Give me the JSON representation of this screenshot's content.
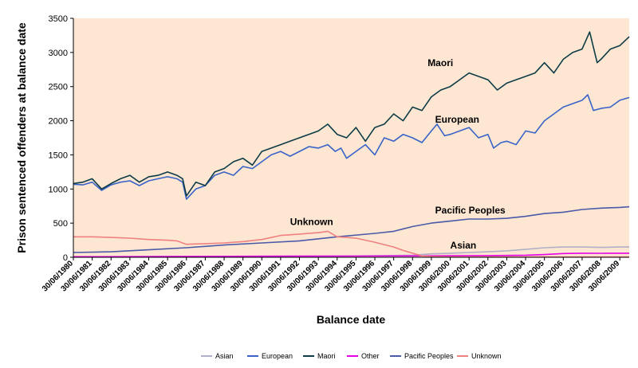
{
  "chart_data": {
    "type": "line",
    "xlabel": "Balance date",
    "ylabel": "Prison sentenced offenders at balance date",
    "ylim": [
      0,
      3500
    ],
    "yticks": [
      "0",
      "500",
      "1000",
      "1500",
      "2000",
      "2500",
      "3000",
      "3500"
    ],
    "x_start_year": 1980,
    "x_end_year": 2009.5,
    "x_tick_labels": [
      "30/06/1980",
      "30/06/1981",
      "30/06/1982",
      "30/06/1983",
      "30/06/1984",
      "30/06/1985",
      "30/06/1986",
      "30/06/1987",
      "30/06/1988",
      "30/06/1989",
      "30/06/1990",
      "30/06/1991",
      "30/06/1992",
      "30/06/1993",
      "30/06/1994",
      "30/06/1995",
      "30/06/1996",
      "30/06/1997",
      "30/06/1998",
      "30/06/1999",
      "30/06/2000",
      "30/06/2001",
      "30/06/2002",
      "30/06/2003",
      "30/06/2004",
      "30/06/2005",
      "30/06/2006",
      "30/06/2007",
      "30/06/2008",
      "30/06/2009"
    ],
    "grid": false,
    "plot_background": "#fde6d2",
    "legend_position": "bottom",
    "series": [
      {
        "name": "Asian",
        "color": "#b0b0c8",
        "x": [
          1980,
          1985,
          1990,
          1995,
          1998,
          1999,
          2000,
          2001,
          2002,
          2003,
          2004,
          2005,
          2006,
          2007,
          2008,
          2009,
          2009.5
        ],
        "values": [
          8,
          10,
          15,
          20,
          30,
          50,
          60,
          70,
          80,
          95,
          115,
          140,
          150,
          150,
          145,
          150,
          150
        ]
      },
      {
        "name": "European",
        "color": "#3a64c8",
        "x": [
          1980,
          1980.5,
          1981,
          1981.5,
          1982,
          1982.5,
          1983,
          1983.5,
          1984,
          1984.5,
          1985,
          1985.5,
          1985.8,
          1986,
          1986.5,
          1987,
          1987.5,
          1988,
          1988.5,
          1989,
          1989.5,
          1990,
          1990.5,
          1991,
          1991.5,
          1992,
          1992.5,
          1993,
          1993.5,
          1993.9,
          1994.2,
          1994.5,
          1995,
          1995.5,
          1996,
          1996.5,
          1997,
          1997.5,
          1998,
          1998.5,
          1999,
          1999.3,
          1999.7,
          2000,
          2000.5,
          2001,
          2001.5,
          2002,
          2002.3,
          2002.7,
          2003,
          2003.5,
          2004,
          2004.5,
          2005,
          2005.5,
          2006,
          2006.5,
          2007,
          2007.3,
          2007.6,
          2008,
          2008.5,
          2009,
          2009.5
        ],
        "values": [
          1070,
          1060,
          1100,
          980,
          1060,
          1100,
          1120,
          1050,
          1120,
          1150,
          1180,
          1150,
          1100,
          850,
          1000,
          1050,
          1200,
          1250,
          1200,
          1330,
          1300,
          1400,
          1500,
          1550,
          1480,
          1550,
          1620,
          1600,
          1650,
          1550,
          1600,
          1450,
          1550,
          1650,
          1500,
          1750,
          1700,
          1800,
          1750,
          1680,
          1850,
          1950,
          1780,
          1800,
          1850,
          1900,
          1750,
          1800,
          1600,
          1680,
          1700,
          1650,
          1850,
          1820,
          2000,
          2100,
          2200,
          2250,
          2300,
          2380,
          2150,
          2180,
          2200,
          2300,
          2340
        ]
      },
      {
        "name": "Maori",
        "color": "#0e3c46",
        "x": [
          1980,
          1980.5,
          1981,
          1981.5,
          1982,
          1982.5,
          1983,
          1983.5,
          1984,
          1984.5,
          1985,
          1985.5,
          1985.8,
          1986,
          1986.5,
          1987,
          1987.5,
          1988,
          1988.5,
          1989,
          1989.5,
          1990,
          1990.5,
          1991,
          1991.5,
          1992,
          1992.5,
          1993,
          1993.5,
          1994,
          1994.5,
          1995,
          1995.5,
          1996,
          1996.5,
          1997,
          1997.5,
          1998,
          1998.5,
          1999,
          1999.5,
          2000,
          2000.5,
          2001,
          2001.5,
          2002,
          2002.5,
          2003,
          2003.5,
          2004,
          2004.5,
          2005,
          2005.5,
          2006,
          2006.5,
          2007,
          2007.4,
          2007.8,
          2008,
          2008.5,
          2009,
          2009.5
        ],
        "values": [
          1080,
          1100,
          1150,
          1000,
          1080,
          1150,
          1200,
          1100,
          1180,
          1200,
          1250,
          1200,
          1150,
          900,
          1100,
          1050,
          1250,
          1300,
          1400,
          1450,
          1350,
          1550,
          1600,
          1650,
          1700,
          1750,
          1800,
          1850,
          1950,
          1800,
          1750,
          1900,
          1700,
          1900,
          1950,
          2100,
          2000,
          2200,
          2150,
          2350,
          2450,
          2500,
          2600,
          2700,
          2650,
          2600,
          2450,
          2550,
          2600,
          2650,
          2700,
          2850,
          2700,
          2900,
          3000,
          3050,
          3300,
          2850,
          2900,
          3050,
          3100,
          3230
        ]
      },
      {
        "name": "Other",
        "color": "#e600e6",
        "x": [
          1980,
          1985,
          1990,
          1995,
          1998,
          2000,
          2002,
          2004,
          2005,
          2006,
          2007,
          2008,
          2009,
          2009.5
        ],
        "values": [
          8,
          10,
          15,
          18,
          20,
          22,
          25,
          30,
          40,
          55,
          60,
          58,
          60,
          60
        ]
      },
      {
        "name": "Pacific Peoples",
        "color": "#4a5aa8",
        "x": [
          1980,
          1982,
          1984,
          1986,
          1988,
          1990,
          1992,
          1994,
          1996,
          1997,
          1998,
          1999,
          2000,
          2001,
          2002,
          2003,
          2004,
          2005,
          2006,
          2007,
          2008,
          2009,
          2009.5
        ],
        "values": [
          70,
          80,
          110,
          140,
          180,
          210,
          240,
          300,
          350,
          380,
          450,
          500,
          530,
          560,
          560,
          570,
          600,
          640,
          660,
          700,
          720,
          730,
          740
        ]
      },
      {
        "name": "Unknown",
        "color": "#f08080",
        "x": [
          1980,
          1981,
          1982,
          1983,
          1984,
          1985,
          1985.5,
          1986,
          1987,
          1988,
          1989,
          1990,
          1991,
          1992,
          1993,
          1993.5,
          1994,
          1995,
          1996,
          1997,
          1997.5,
          1998,
          1998.5,
          1999,
          2000,
          2002,
          2005,
          2009.5
        ],
        "values": [
          300,
          300,
          290,
          280,
          260,
          250,
          240,
          190,
          200,
          210,
          230,
          260,
          320,
          340,
          360,
          380,
          300,
          280,
          220,
          150,
          100,
          60,
          20,
          10,
          5,
          5,
          5,
          5
        ]
      }
    ],
    "annotations": [
      {
        "text": "Maori",
        "x": 1998.8,
        "y": 2800
      },
      {
        "text": "European",
        "x": 1999.2,
        "y": 1970
      },
      {
        "text": "Pacific Peoples",
        "x": 1999.2,
        "y": 640
      },
      {
        "text": "Unknown",
        "x": 1991.5,
        "y": 470
      },
      {
        "text": "Asian",
        "x": 2000.0,
        "y": 130
      }
    ]
  }
}
